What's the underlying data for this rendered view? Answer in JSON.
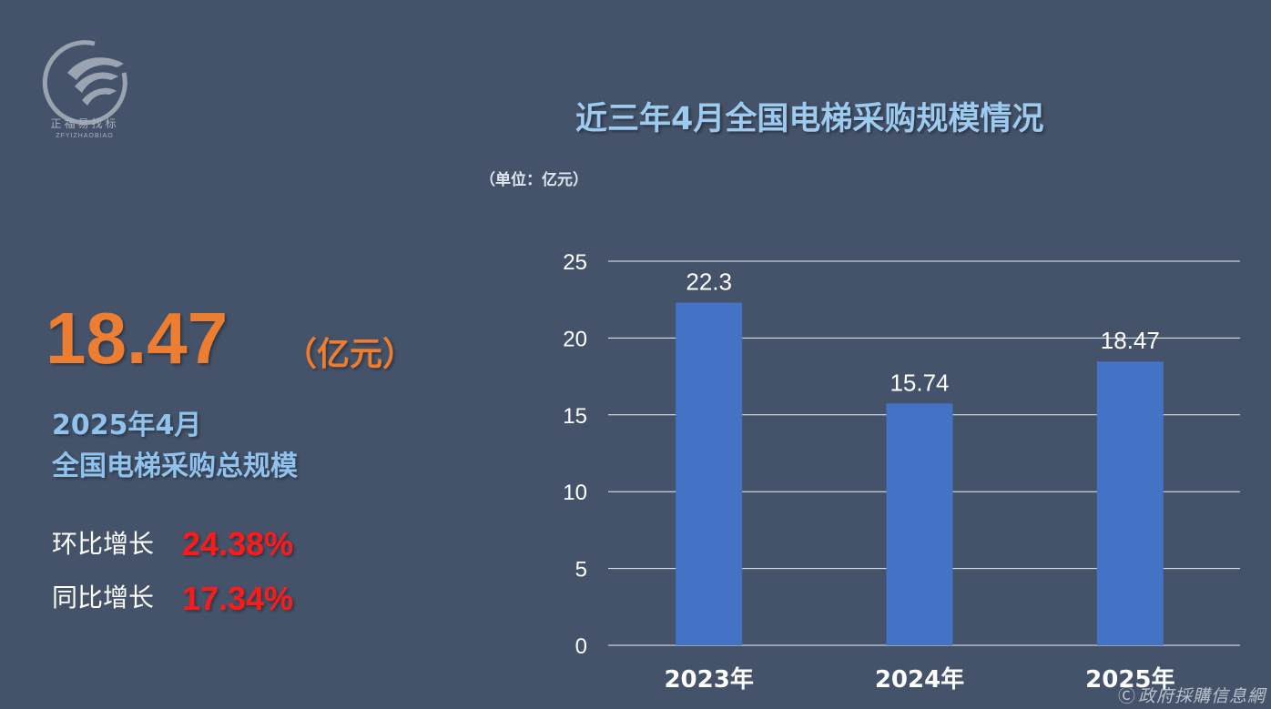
{
  "logo": {
    "cn": "正福易找标",
    "en": "ZFYIZHAOBIAO"
  },
  "headline": {
    "value": "18.47",
    "unit": "（亿元）",
    "line1": "2025年4月",
    "line2": "全国电梯采购总规模"
  },
  "growth": [
    {
      "label": "环比增长",
      "value": "24.38%"
    },
    {
      "label": "同比增长",
      "value": "17.34%"
    }
  ],
  "watermark": "政府採購信息網",
  "colors": {
    "background": "#45536a",
    "bar": "#4472c4",
    "headline": "#ed7d31",
    "growth": "#ff1a1a",
    "title": "#9ccbef"
  },
  "chart_data": {
    "type": "bar",
    "title": "近三年4月全国电梯采购规模情况",
    "unit_note": "（单位：亿元）",
    "categories": [
      "2023年",
      "2024年",
      "2025年"
    ],
    "values": [
      22.3,
      15.74,
      18.47
    ],
    "value_labels": [
      "22.3",
      "15.74",
      "18.47"
    ],
    "ylim": [
      0,
      25
    ],
    "yticks": [
      0,
      5,
      10,
      15,
      20,
      25
    ],
    "grid": true,
    "legend": "none"
  }
}
